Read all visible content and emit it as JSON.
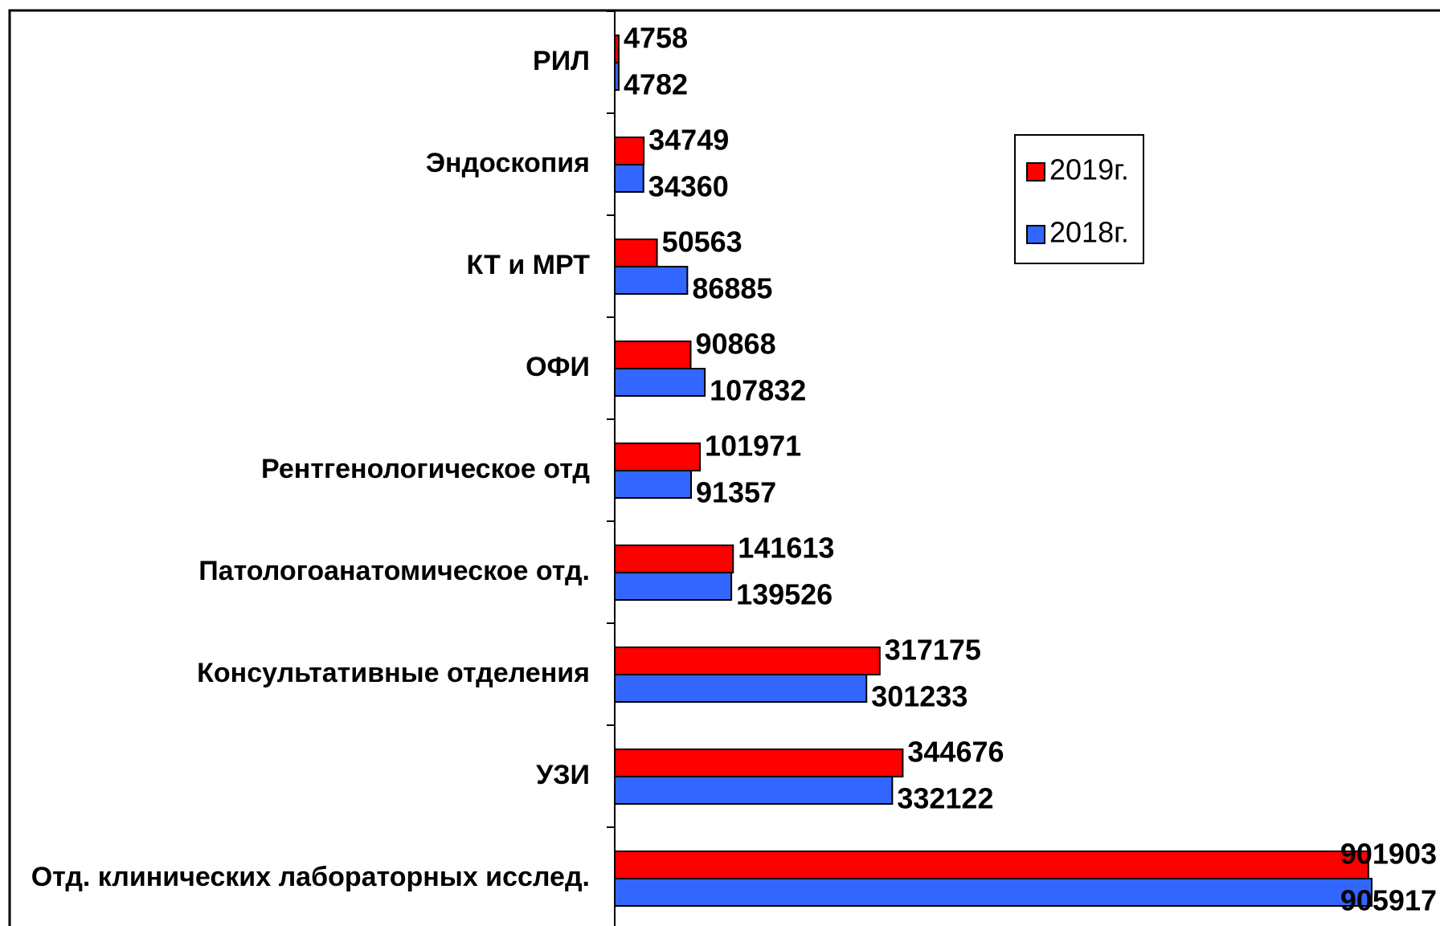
{
  "chart_data": {
    "type": "hbar",
    "categories": [
      "РИЛ",
      "Эндоскопия",
      "КТ и МРТ",
      "ОФИ",
      "Рентгенологическое отд",
      "Патологоанатомическое отд.",
      "Консультативные отделения",
      "УЗИ",
      "Отд. клинических лабораторных исслед."
    ],
    "series": [
      {
        "name": "2019г.",
        "color": "#ff0000",
        "values": [
          4758,
          34749,
          50563,
          90868,
          101971,
          141613,
          317175,
          344676,
          901903
        ]
      },
      {
        "name": "2018г.",
        "color": "#3366ff",
        "values": [
          4782,
          34360,
          86885,
          107832,
          91357,
          139526,
          301233,
          332122,
          905917
        ]
      }
    ],
    "legend": "upper right"
  }
}
